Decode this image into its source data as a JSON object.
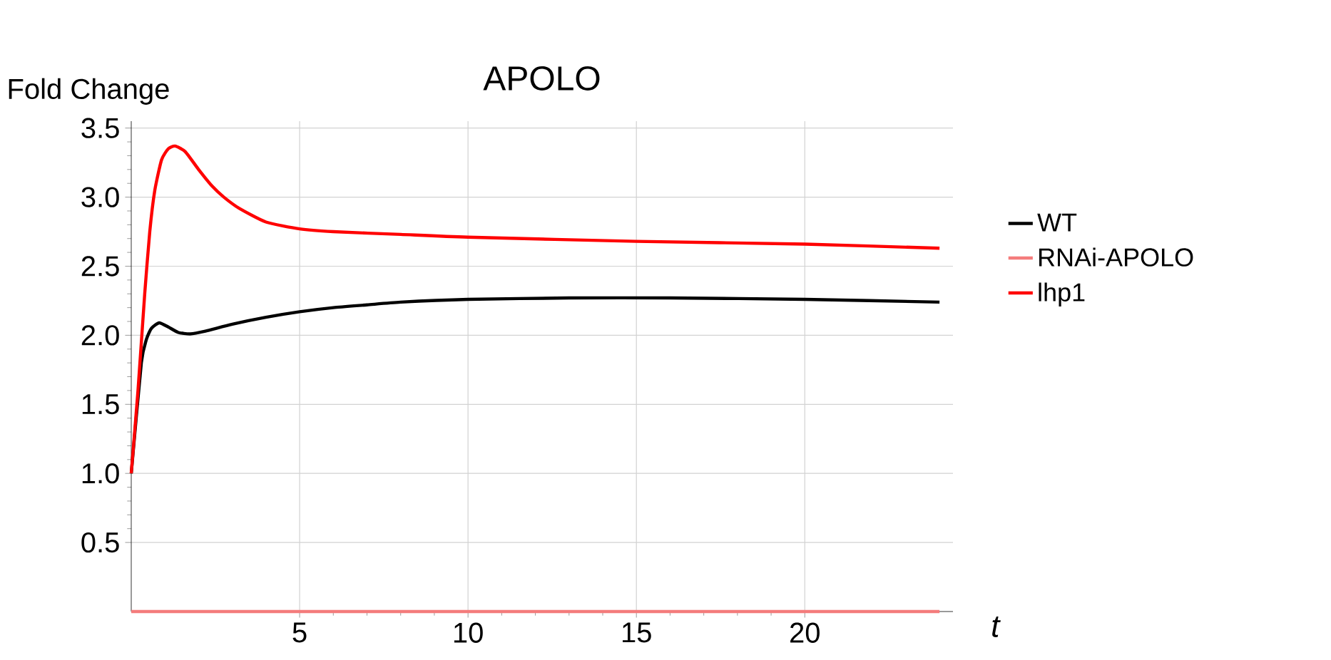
{
  "chart_data": {
    "type": "line",
    "title": "APOLO",
    "xlabel": "t",
    "ylabel": "Fold Change",
    "xlim": [
      0,
      24.4
    ],
    "ylim": [
      0,
      3.55
    ],
    "xticks": [
      5,
      10,
      15,
      20
    ],
    "yticks": [
      0.5,
      {
        "value": 1,
        "label": "1.0"
      },
      1.5,
      {
        "value": 2,
        "label": "2.0"
      },
      2.5,
      {
        "value": 3,
        "label": "3.0"
      },
      3.5
    ],
    "grid": true,
    "legend": "right",
    "series": [
      {
        "name": "WT",
        "color": "#000000",
        "x": [
          0,
          0.3,
          0.45,
          0.6,
          0.83,
          1.1,
          1.4,
          1.75,
          2.2,
          3,
          4,
          5,
          6,
          7,
          8,
          10,
          13,
          16,
          20,
          24
        ],
        "values": [
          1.0,
          1.8,
          1.97,
          2.05,
          2.09,
          2.06,
          2.02,
          2.01,
          2.03,
          2.08,
          2.13,
          2.17,
          2.2,
          2.22,
          2.24,
          2.26,
          2.27,
          2.27,
          2.26,
          2.24
        ]
      },
      {
        "name": "RNAi-APOLO",
        "color": "#f47c7c",
        "x": [
          0,
          24
        ],
        "values": [
          0,
          0
        ]
      },
      {
        "name": "lhp1",
        "color": "#ff0000",
        "x": [
          0,
          0.2,
          0.4,
          0.55,
          0.7,
          0.9,
          1.1,
          1.3,
          1.6,
          2.0,
          2.4,
          2.75,
          3.2,
          4,
          5,
          6,
          8,
          10,
          15,
          20,
          24
        ],
        "values": [
          1.0,
          1.6,
          2.3,
          2.75,
          3.05,
          3.27,
          3.35,
          3.37,
          3.33,
          3.2,
          3.08,
          3.0,
          2.92,
          2.82,
          2.77,
          2.75,
          2.73,
          2.71,
          2.68,
          2.66,
          2.63
        ]
      }
    ]
  }
}
